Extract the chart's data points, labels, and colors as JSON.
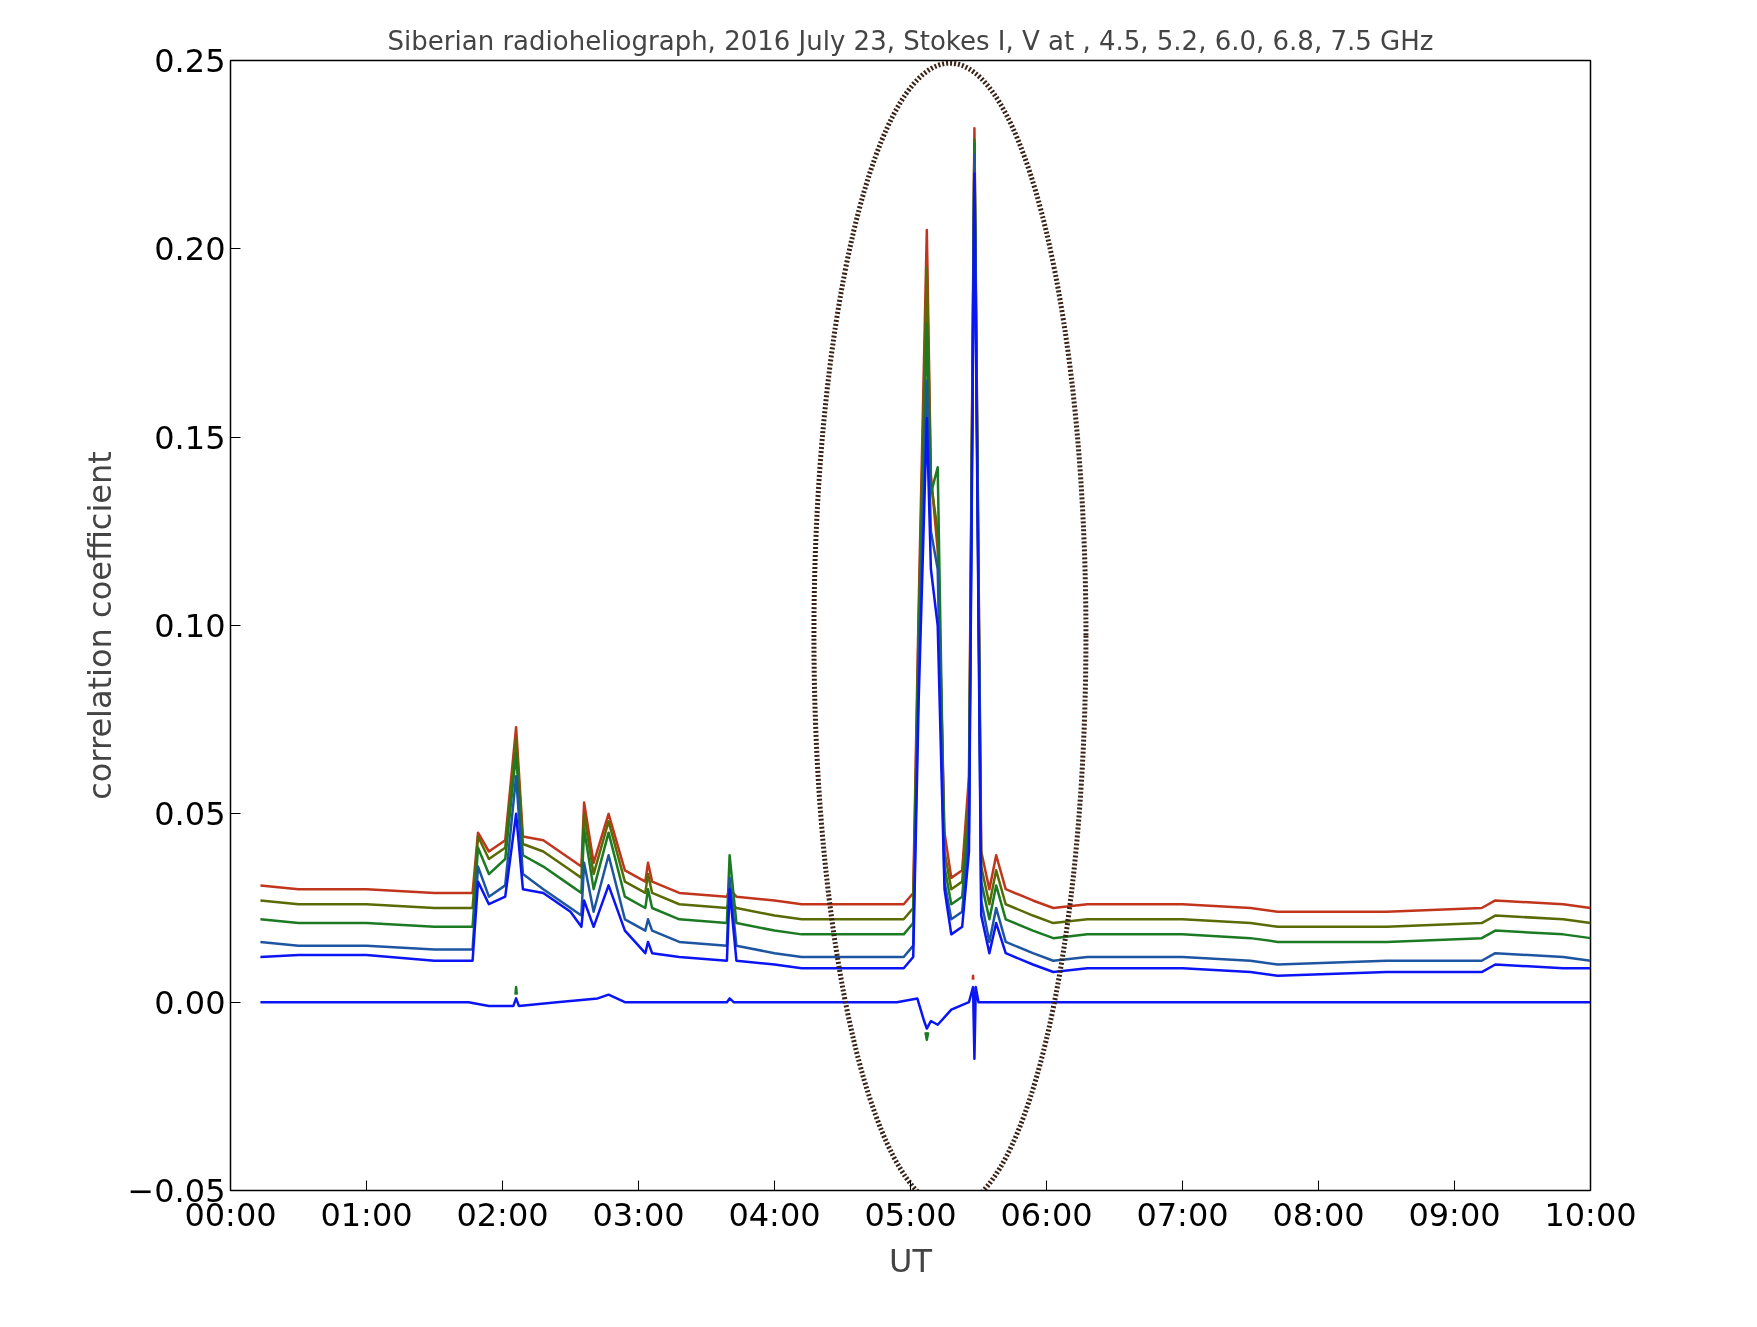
{
  "chart_data": {
    "type": "line",
    "title": "Siberian radioheliograph, 2016 July 23, Stokes I, V at , 4.5, 5.2, 6.0, 6.8, 7.5 GHz",
    "xlabel": "UT",
    "ylabel": "correlation coefficient",
    "xlim": [
      0,
      10
    ],
    "ylim": [
      -0.05,
      0.25
    ],
    "xticks": [
      {
        "value": 0,
        "label": "00:00"
      },
      {
        "value": 1,
        "label": "01:00"
      },
      {
        "value": 2,
        "label": "02:00"
      },
      {
        "value": 3,
        "label": "03:00"
      },
      {
        "value": 4,
        "label": "04:00"
      },
      {
        "value": 5,
        "label": "05:00"
      },
      {
        "value": 6,
        "label": "06:00"
      },
      {
        "value": 7,
        "label": "07:00"
      },
      {
        "value": 8,
        "label": "08:00"
      },
      {
        "value": 9,
        "label": "09:00"
      },
      {
        "value": 10,
        "label": "10:00"
      }
    ],
    "yticks": [
      {
        "value": -0.05,
        "label": "−0.05"
      },
      {
        "value": 0,
        "label": "0.00"
      },
      {
        "value": 0.05,
        "label": "0.05"
      },
      {
        "value": 0.1,
        "label": "0.10"
      },
      {
        "value": 0.15,
        "label": "0.15"
      },
      {
        "value": 0.2,
        "label": "0.20"
      },
      {
        "value": 0.25,
        "label": "0.25"
      }
    ],
    "grid": false,
    "line_style": "solid",
    "marker": "none",
    "x": [
      0.22,
      0.5,
      1.0,
      1.5,
      1.78,
      1.82,
      1.9,
      2.02,
      2.1,
      2.15,
      2.3,
      2.5,
      2.58,
      2.6,
      2.67,
      2.78,
      2.9,
      3.05,
      3.07,
      3.1,
      3.3,
      3.65,
      3.67,
      3.72,
      4.0,
      4.2,
      4.5,
      4.95,
      5.02,
      5.06,
      5.12,
      5.15,
      5.2,
      5.25,
      5.3,
      5.38,
      5.43,
      5.47,
      5.52,
      5.58,
      5.63,
      5.7,
      5.9,
      6.05,
      6.3,
      7.0,
      7.5,
      7.7,
      8.5,
      9.2,
      9.3,
      9.8,
      10.0
    ],
    "series": [
      {
        "color": "#c1351d",
        "values": [
          0.031,
          0.03,
          0.03,
          0.029,
          0.029,
          0.045,
          0.04,
          0.043,
          0.073,
          0.044,
          0.043,
          0.038,
          0.036,
          0.053,
          0.037,
          0.05,
          0.035,
          0.032,
          0.037,
          0.032,
          0.029,
          0.028,
          0.03,
          0.028,
          0.027,
          0.026,
          0.026,
          0.026,
          0.029,
          0.105,
          0.205,
          0.14,
          0.12,
          0.045,
          0.033,
          0.035,
          0.06,
          0.232,
          0.04,
          0.03,
          0.039,
          0.03,
          0.027,
          0.025,
          0.026,
          0.026,
          0.025,
          0.024,
          0.024,
          0.025,
          0.027,
          0.026,
          0.025
        ]
      },
      {
        "color": "#5a6a05",
        "values": [
          0.027,
          0.026,
          0.026,
          0.025,
          0.025,
          0.044,
          0.038,
          0.041,
          0.07,
          0.042,
          0.04,
          0.035,
          0.033,
          0.05,
          0.034,
          0.048,
          0.032,
          0.029,
          0.034,
          0.029,
          0.026,
          0.025,
          0.027,
          0.025,
          0.023,
          0.022,
          0.022,
          0.022,
          0.025,
          0.1,
          0.195,
          0.138,
          0.125,
          0.04,
          0.03,
          0.032,
          0.055,
          0.229,
          0.036,
          0.026,
          0.035,
          0.026,
          0.023,
          0.021,
          0.022,
          0.022,
          0.021,
          0.02,
          0.02,
          0.021,
          0.023,
          0.022,
          0.021
        ]
      },
      {
        "color": "#1b7a22",
        "values": [
          0.022,
          0.021,
          0.021,
          0.02,
          0.02,
          0.041,
          0.034,
          0.038,
          0.066,
          0.039,
          0.036,
          0.031,
          0.029,
          0.046,
          0.03,
          0.045,
          0.028,
          0.025,
          0.03,
          0.025,
          0.022,
          0.021,
          0.039,
          0.021,
          0.019,
          0.018,
          0.018,
          0.018,
          0.021,
          0.095,
          0.18,
          0.135,
          0.142,
          0.036,
          0.026,
          0.028,
          0.05,
          0.228,
          0.032,
          0.022,
          0.031,
          0.022,
          0.019,
          0.017,
          0.018,
          0.018,
          0.017,
          0.016,
          0.016,
          0.017,
          0.019,
          0.018,
          0.017
        ]
      },
      {
        "color": "#1d55a0",
        "values": [
          0.016,
          0.015,
          0.015,
          0.014,
          0.014,
          0.036,
          0.028,
          0.031,
          0.06,
          0.034,
          0.03,
          0.025,
          0.023,
          0.037,
          0.024,
          0.039,
          0.022,
          0.019,
          0.022,
          0.019,
          0.016,
          0.015,
          0.033,
          0.015,
          0.013,
          0.012,
          0.012,
          0.012,
          0.015,
          0.088,
          0.165,
          0.125,
          0.115,
          0.032,
          0.022,
          0.024,
          0.045,
          0.225,
          0.027,
          0.016,
          0.025,
          0.016,
          0.013,
          0.011,
          0.012,
          0.012,
          0.011,
          0.01,
          0.011,
          0.011,
          0.013,
          0.012,
          0.011
        ]
      },
      {
        "color": "#0a14f5",
        "values": [
          0.012,
          0.0125,
          0.0125,
          0.011,
          0.011,
          0.032,
          0.026,
          0.028,
          0.05,
          0.03,
          0.029,
          0.024,
          0.02,
          0.027,
          0.02,
          0.031,
          0.019,
          0.013,
          0.016,
          0.013,
          0.012,
          0.011,
          0.03,
          0.011,
          0.01,
          0.009,
          0.009,
          0.009,
          0.012,
          0.08,
          0.155,
          0.115,
          0.1,
          0.03,
          0.018,
          0.02,
          0.04,
          0.22,
          0.023,
          0.013,
          0.021,
          0.013,
          0.01,
          0.008,
          0.009,
          0.009,
          0.008,
          0.007,
          0.008,
          0.008,
          0.01,
          0.009,
          0.009
        ]
      },
      {
        "color": "#c1351d",
        "x": [
          5.458,
          5.46,
          5.462
        ],
        "values": [
          0.006,
          0.007,
          0.006
        ]
      },
      {
        "color": "#1b7a22",
        "x": [
          2.095,
          2.1,
          2.105,
          3.0,
          5.11,
          5.12,
          5.13
        ],
        "values": [
          0.002,
          0.004,
          0.002,
          null,
          -0.008,
          -0.01,
          -0.008
        ]
      },
      {
        "color": "#0a14f5",
        "x": [
          0.22,
          1.75,
          1.9,
          2.08,
          2.1,
          2.12,
          2.4,
          2.7,
          2.78,
          2.9,
          3.65,
          3.67,
          3.7,
          4.9,
          5.05,
          5.1,
          5.12,
          5.15,
          5.2,
          5.3,
          5.43,
          5.46,
          5.47,
          5.48,
          5.5,
          5.6,
          10.0
        ],
        "values": [
          0,
          0,
          -0.001,
          -0.001,
          0.001,
          -0.001,
          0,
          0.001,
          0.002,
          0,
          0,
          0.001,
          0,
          0,
          0.001,
          -0.005,
          -0.007,
          -0.005,
          -0.006,
          -0.002,
          0,
          0.004,
          -0.015,
          0.004,
          0,
          0,
          0
        ]
      }
    ]
  }
}
